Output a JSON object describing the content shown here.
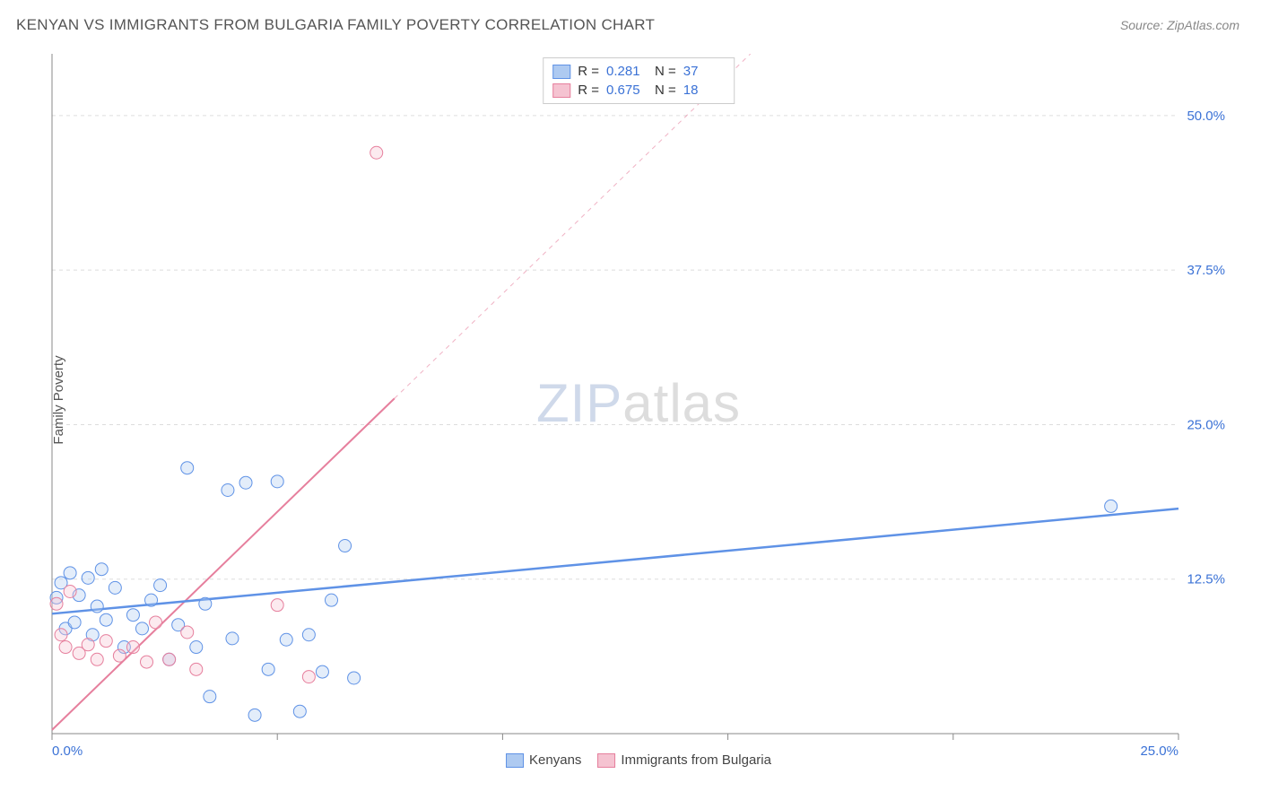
{
  "header": {
    "title": "KENYAN VS IMMIGRANTS FROM BULGARIA FAMILY POVERTY CORRELATION CHART",
    "source": "Source: ZipAtlas.com"
  },
  "y_axis_label": "Family Poverty",
  "watermark": {
    "prefix": "ZIP",
    "suffix": "atlas"
  },
  "chart": {
    "type": "scatter",
    "background_color": "#ffffff",
    "grid_color": "#dddddd",
    "grid_dash": "4,4",
    "axis_color": "#888888",
    "tick_label_color": "#3b72d6",
    "xlim": [
      0,
      25
    ],
    "ylim": [
      0,
      55
    ],
    "x_ticks": [
      0,
      5,
      10,
      15,
      20,
      25
    ],
    "x_tick_labels": [
      "0.0%",
      "",
      "",
      "",
      "",
      "25.0%"
    ],
    "y_ticks": [
      12.5,
      25,
      37.5,
      50
    ],
    "y_tick_labels": [
      "12.5%",
      "25.0%",
      "37.5%",
      "50.0%"
    ],
    "marker_radius": 7,
    "marker_stroke_width": 1,
    "marker_fill_opacity": 0.35,
    "series": [
      {
        "name": "Kenyans",
        "color_stroke": "#5f92e6",
        "color_fill": "#aecaf1",
        "R": "0.281",
        "N": "37",
        "trend": {
          "x1": 0,
          "y1": 9.7,
          "x2": 25,
          "y2": 18.2,
          "solid_until_x": 25,
          "stroke_width": 2.5
        },
        "points": [
          [
            0.1,
            11.0
          ],
          [
            0.2,
            12.2
          ],
          [
            0.3,
            8.5
          ],
          [
            0.4,
            13.0
          ],
          [
            0.5,
            9.0
          ],
          [
            0.6,
            11.2
          ],
          [
            0.8,
            12.6
          ],
          [
            0.9,
            8.0
          ],
          [
            1.0,
            10.3
          ],
          [
            1.1,
            13.3
          ],
          [
            1.2,
            9.2
          ],
          [
            1.4,
            11.8
          ],
          [
            1.6,
            7.0
          ],
          [
            1.8,
            9.6
          ],
          [
            2.0,
            8.5
          ],
          [
            2.2,
            10.8
          ],
          [
            2.4,
            12.0
          ],
          [
            2.6,
            6.0
          ],
          [
            2.8,
            8.8
          ],
          [
            3.0,
            21.5
          ],
          [
            3.2,
            7.0
          ],
          [
            3.4,
            10.5
          ],
          [
            3.5,
            3.0
          ],
          [
            3.9,
            19.7
          ],
          [
            4.0,
            7.7
          ],
          [
            4.3,
            20.3
          ],
          [
            4.5,
            1.5
          ],
          [
            5.0,
            20.4
          ],
          [
            5.2,
            7.6
          ],
          [
            5.5,
            1.8
          ],
          [
            6.0,
            5.0
          ],
          [
            6.2,
            10.8
          ],
          [
            6.5,
            15.2
          ],
          [
            6.7,
            4.5
          ],
          [
            23.5,
            18.4
          ],
          [
            4.8,
            5.2
          ],
          [
            5.7,
            8.0
          ]
        ]
      },
      {
        "name": "Immigrants from Bulgaria",
        "color_stroke": "#e67f9d",
        "color_fill": "#f5c3d1",
        "R": "0.675",
        "N": "18",
        "trend": {
          "x1": 0,
          "y1": 0.3,
          "x2": 15.5,
          "y2": 55,
          "solid_until_x": 7.6,
          "stroke_width": 2
        },
        "points": [
          [
            0.1,
            10.5
          ],
          [
            0.2,
            8.0
          ],
          [
            0.3,
            7.0
          ],
          [
            0.4,
            11.5
          ],
          [
            0.6,
            6.5
          ],
          [
            0.8,
            7.2
          ],
          [
            1.0,
            6.0
          ],
          [
            1.2,
            7.5
          ],
          [
            1.5,
            6.3
          ],
          [
            1.8,
            7.0
          ],
          [
            2.1,
            5.8
          ],
          [
            2.3,
            9.0
          ],
          [
            2.6,
            6.0
          ],
          [
            3.0,
            8.2
          ],
          [
            3.2,
            5.2
          ],
          [
            5.0,
            10.4
          ],
          [
            5.7,
            4.6
          ],
          [
            7.2,
            47.0
          ]
        ]
      }
    ]
  },
  "legend_top": {
    "labels": {
      "R": "R =",
      "N": "N ="
    }
  },
  "legend_bottom": {
    "items": [
      "Kenyans",
      "Immigrants from Bulgaria"
    ]
  }
}
